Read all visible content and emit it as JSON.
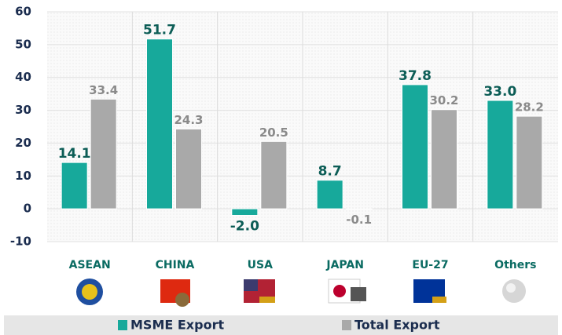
{
  "chart_data": {
    "type": "bar",
    "categories": [
      "ASEAN",
      "CHINA",
      "USA",
      "JAPAN",
      "EU-27",
      "Others"
    ],
    "series": [
      {
        "name": "MSME Export",
        "color": "#17a99b",
        "values": [
          14.1,
          51.7,
          -2.0,
          8.7,
          37.8,
          33.0
        ],
        "value_labels": [
          "14.1",
          "51.7",
          "-2.0",
          "8.7",
          "37.8",
          "33.0"
        ]
      },
      {
        "name": "Total Export",
        "color": "#a9a9a9",
        "values": [
          33.4,
          24.3,
          20.5,
          -0.1,
          30.2,
          28.2
        ],
        "value_labels": [
          "33.4",
          "24.3",
          "20.5",
          "-0.1",
          "30.2",
          "28.2"
        ]
      }
    ],
    "ylim": [
      -10,
      60
    ],
    "yticks": [
      -10,
      0,
      10,
      20,
      30,
      40,
      50,
      60
    ],
    "grid": true
  }
}
